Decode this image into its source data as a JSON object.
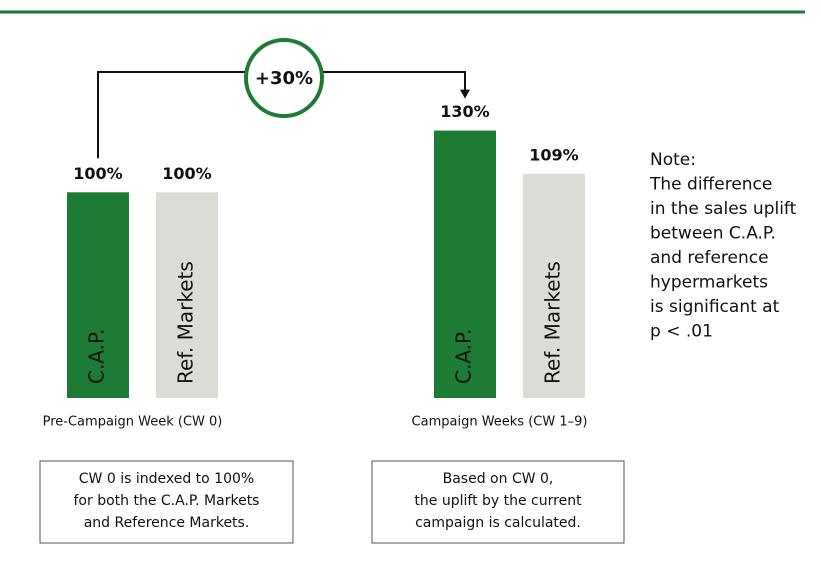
{
  "chart_data": {
    "type": "bar",
    "categories": [
      "Pre-Campaign Week (CW 0)",
      "Campaign Weeks (CW 1–9)"
    ],
    "series": [
      {
        "name": "C.A.P.",
        "color": "#1e7b34",
        "values": [
          100,
          130
        ],
        "value_labels": [
          "100%",
          "130%"
        ]
      },
      {
        "name": "Ref. Markets",
        "color": "#dcdcd6",
        "values": [
          100,
          109
        ],
        "value_labels": [
          "100%",
          "109%"
        ]
      }
    ],
    "ylim": [
      0,
      140
    ],
    "annotation": "+30%",
    "note": [
      "Note:",
      "The difference",
      "in the sales uplift",
      "between C.A.P.",
      "and reference",
      "hypermarkets",
      "is significant at",
      "p < .01"
    ],
    "explanations": [
      [
        "CW 0 is indexed to 100%",
        "for both the C.A.P. Markets",
        "and Reference Markets."
      ],
      [
        "Based on CW 0,",
        "the uplift by the current",
        "campaign is calculated."
      ]
    ]
  }
}
